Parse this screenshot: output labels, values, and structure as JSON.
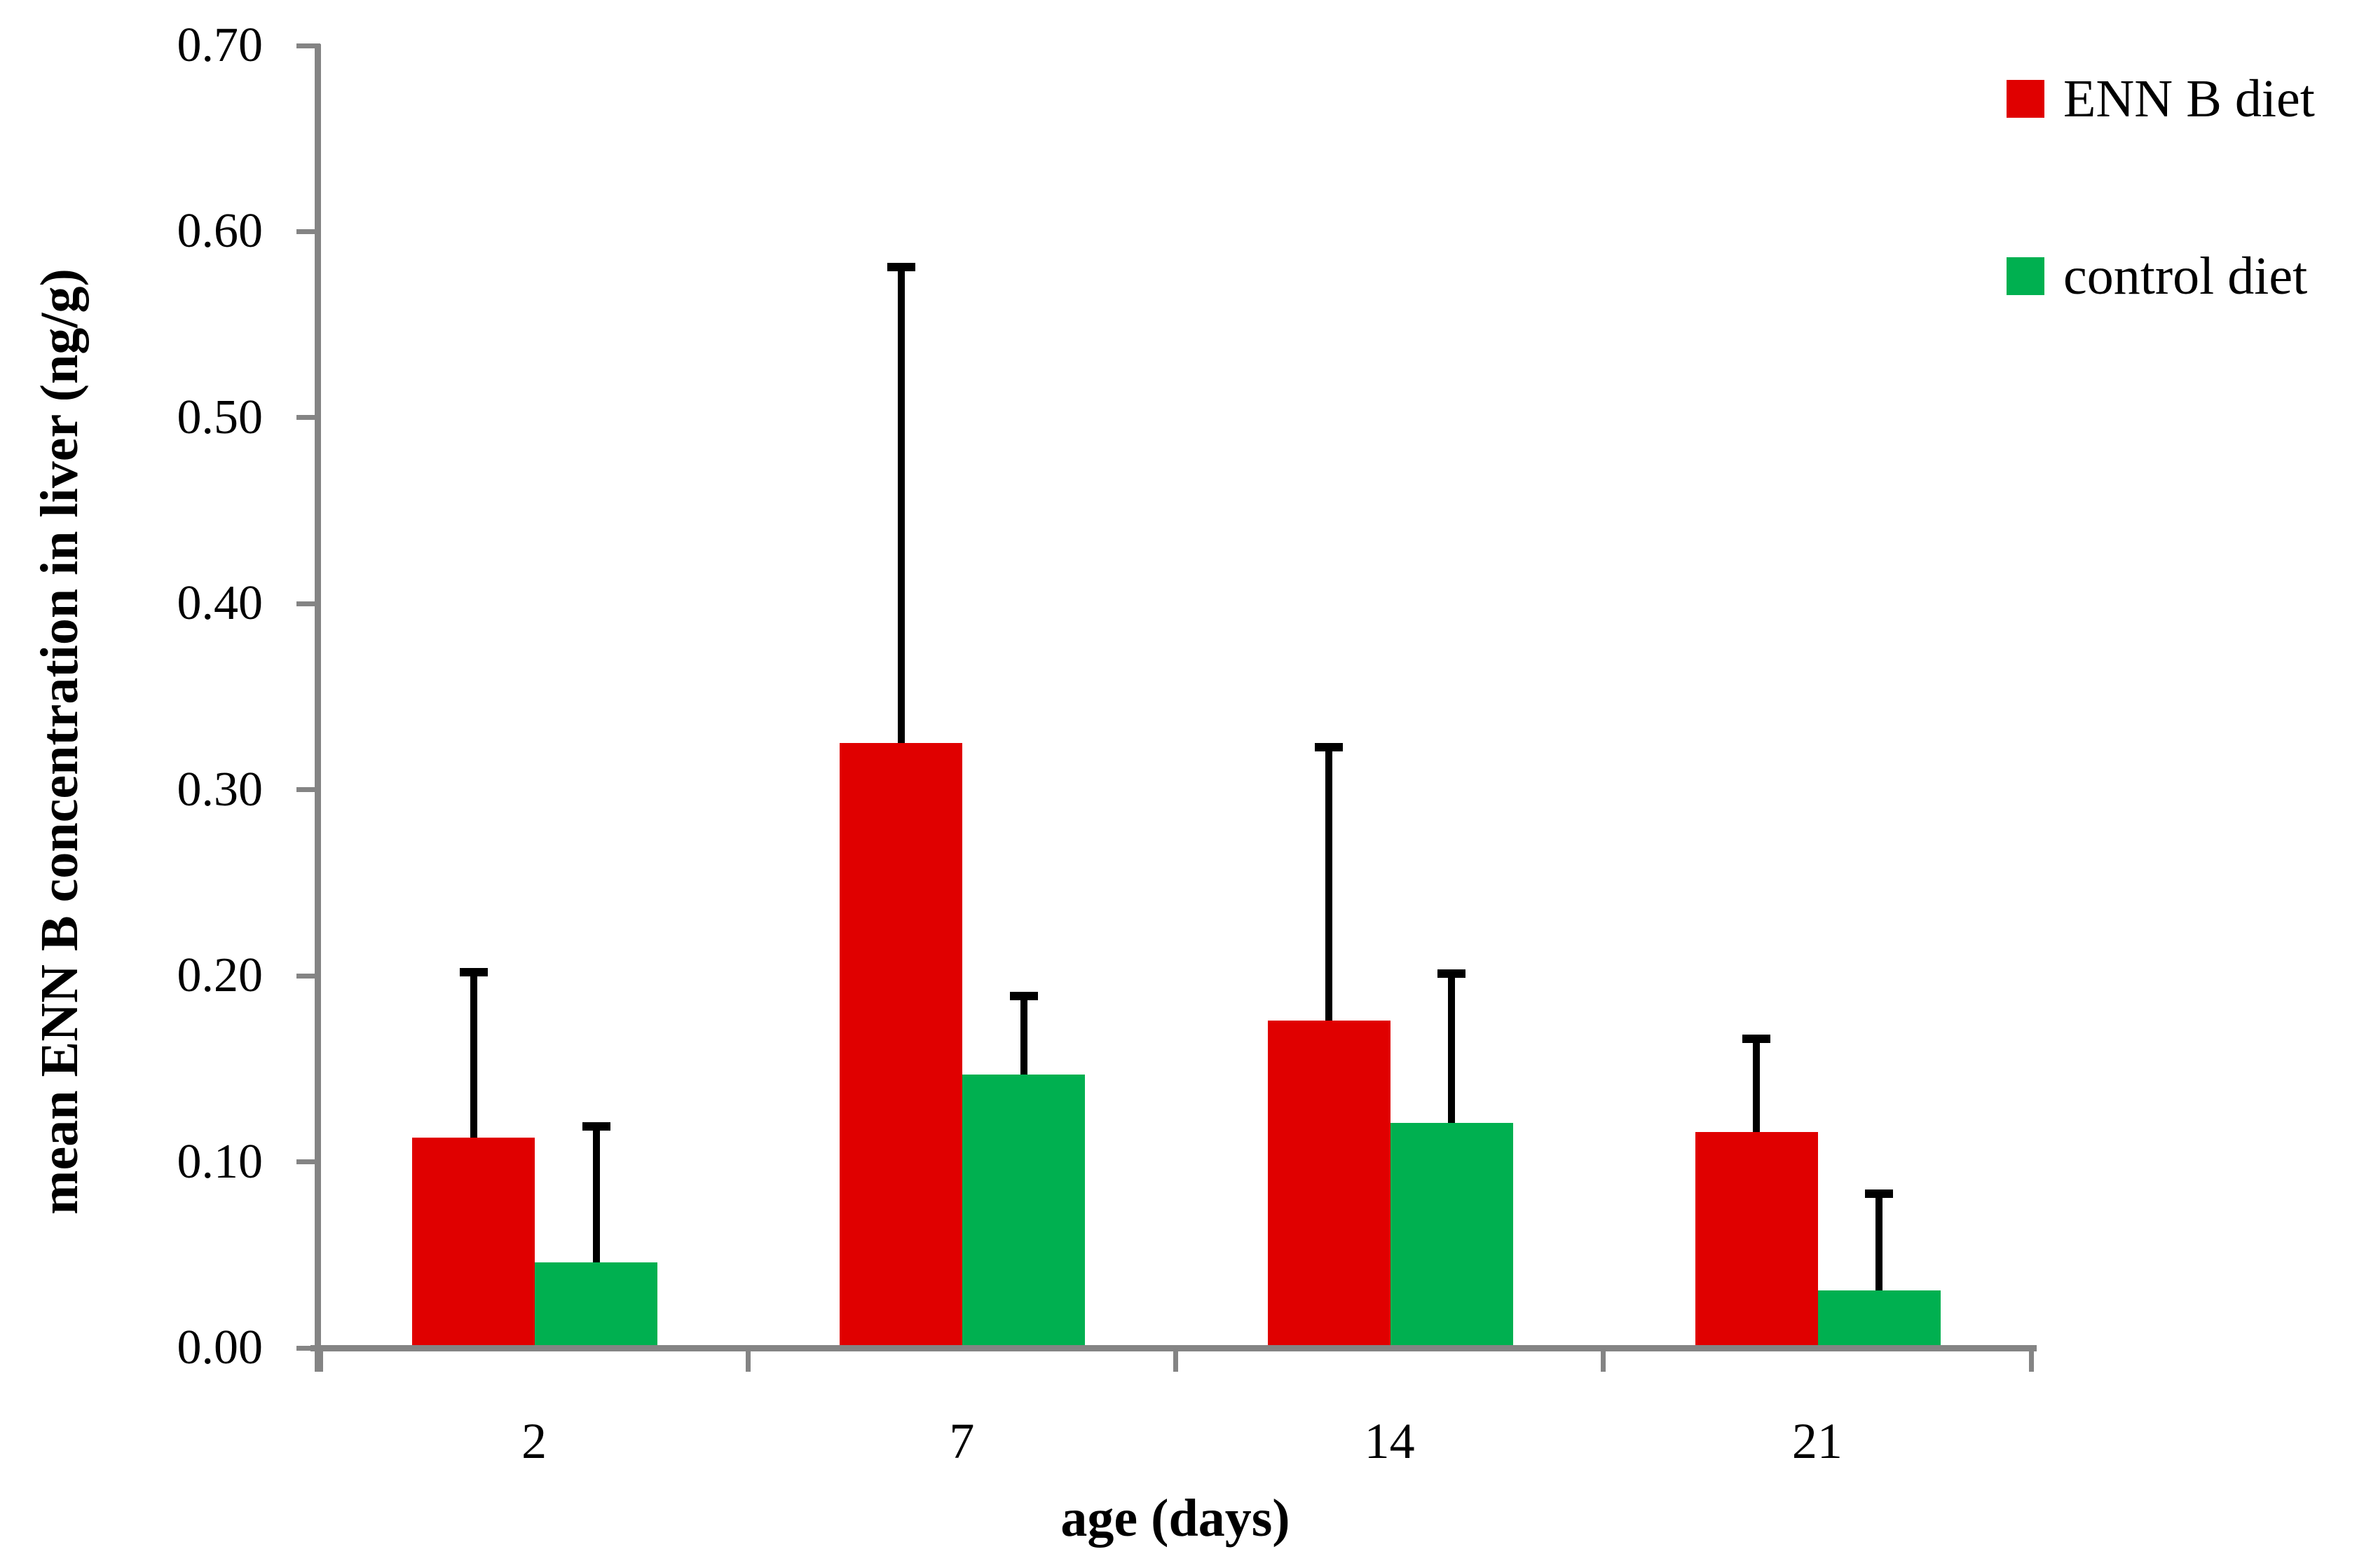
{
  "chart_data": {
    "type": "bar",
    "title": "",
    "categories": [
      "2",
      "7",
      "14",
      "21"
    ],
    "series": [
      {
        "name": "ENN B diet",
        "color": "#E00000",
        "values": [
          0.113,
          0.325,
          0.176,
          0.116
        ],
        "errors_plus": [
          0.089,
          0.256,
          0.147,
          0.05
        ]
      },
      {
        "name": "control diet",
        "color": "#00B050",
        "values": [
          0.046,
          0.147,
          0.121,
          0.031
        ],
        "errors_plus": [
          0.073,
          0.042,
          0.08,
          0.052
        ]
      }
    ],
    "xlabel": "age (days)",
    "ylabel": "mean ENN B concentration in liver (ng/g)",
    "ylim": [
      0,
      0.7
    ],
    "ytick_step": 0.1,
    "yticks": [
      "0.00",
      "0.10",
      "0.20",
      "0.30",
      "0.40",
      "0.50",
      "0.60",
      "0.70"
    ],
    "grid": false,
    "legend_position": "right-top",
    "error_bar_style": "upper only, black line with cap"
  },
  "colors": {
    "axis": "#848484",
    "error": "#000000",
    "background": "#FFFFFF",
    "text": "#000000"
  }
}
